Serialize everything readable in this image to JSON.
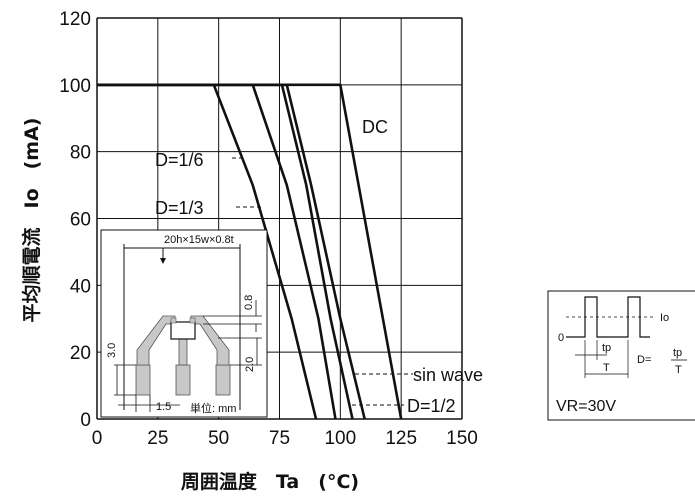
{
  "chart_data": {
    "type": "line",
    "xlabel": "周囲温度　Ta　(°C)",
    "ylabel": "平均順電流　Io　(mA)",
    "xlim": [
      0,
      150
    ],
    "ylim": [
      0,
      120
    ],
    "xticks": [
      "0",
      "25",
      "50",
      "75",
      "100",
      "125",
      "150"
    ],
    "yticks": [
      "0",
      "20",
      "40",
      "60",
      "80",
      "100",
      "120"
    ],
    "grid": true,
    "series": [
      {
        "name": "DC",
        "x": [
          0,
          100,
          125
        ],
        "y": [
          100,
          100,
          0
        ]
      },
      {
        "name": "sin wave",
        "x": [
          0,
          78,
          88,
          100,
          110
        ],
        "y": [
          100,
          100,
          70,
          30,
          0
        ]
      },
      {
        "name": "D=1/2",
        "x": [
          0,
          76,
          86,
          96,
          105
        ],
        "y": [
          100,
          100,
          70,
          30,
          0
        ]
      },
      {
        "name": "D=1/3",
        "x": [
          0,
          64,
          78,
          91,
          98
        ],
        "y": [
          100,
          100,
          70,
          30,
          0
        ]
      },
      {
        "name": "D=1/6",
        "x": [
          0,
          48,
          64,
          80,
          90
        ],
        "y": [
          100,
          100,
          70,
          30,
          0
        ]
      }
    ],
    "series_labels": {
      "dc": "DC",
      "d16": "D=1/6",
      "d13": "D=1/3",
      "sin": "sin wave",
      "d12": "D=1/2"
    },
    "inset": {
      "board": "20h×15w×0.8t",
      "dim_08": "0.8",
      "dim_30": "3.0",
      "dim_20": "2.0",
      "dim_15": "1.5",
      "unit": "単位: mm"
    },
    "legend_box": {
      "io": "Io",
      "zero": "0",
      "tp": "tp",
      "T": "T",
      "d_eq": "D=",
      "frac_num": "tp",
      "frac_den": "T",
      "vr": "VR=30V"
    }
  }
}
